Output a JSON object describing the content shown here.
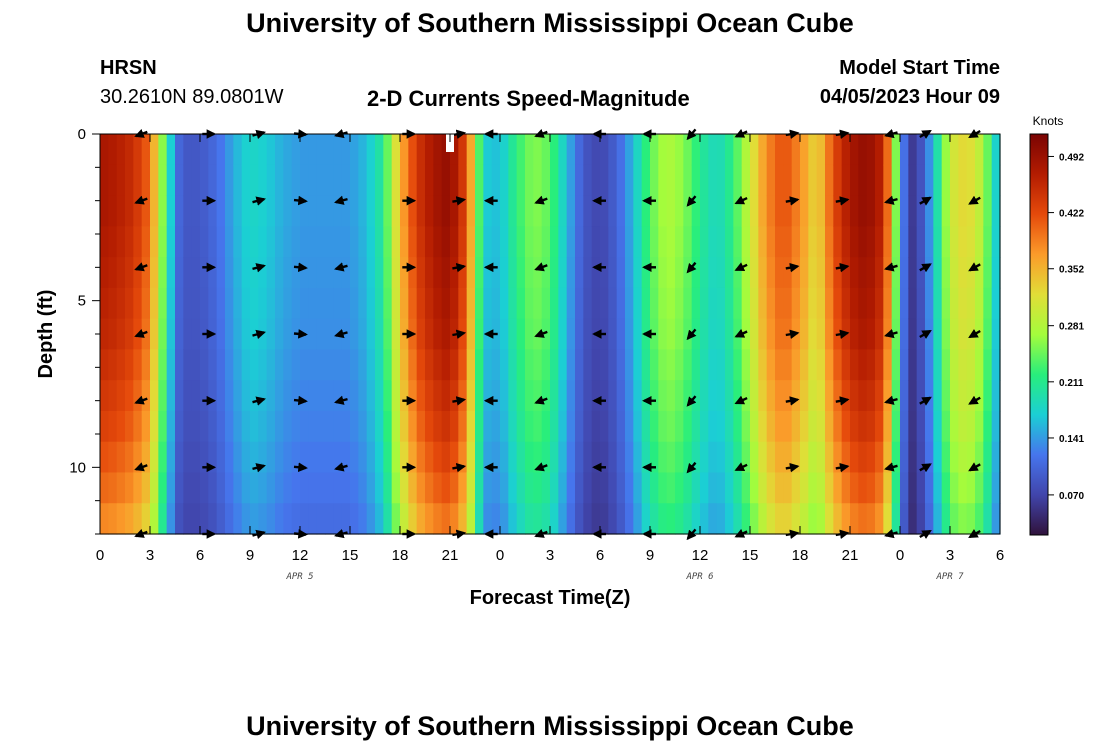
{
  "header": {
    "title_top": "University of Southern Mississippi Ocean Cube",
    "station": "HRSN",
    "coords": "30.2610N  89.0801W",
    "plot_title": "2-D Currents Speed-Magnitude",
    "model_start_label": "Model Start Time",
    "model_start_value": "04/05/2023 Hour 09",
    "title_bottom": "University of Southern Mississippi Ocean Cube"
  },
  "chart_data": {
    "type": "heatmap",
    "title": "2-D Currents Speed-Magnitude",
    "xlabel": "Forecast Time(Z)",
    "ylabel": "Depth (ft)",
    "x_hours": [
      0,
      54
    ],
    "ylim": [
      0,
      12
    ],
    "x_tick_labels": [
      "0",
      "3",
      "6",
      "9",
      "12",
      "15",
      "18",
      "21",
      "0",
      "3",
      "6",
      "9",
      "12",
      "15",
      "18",
      "21",
      "0",
      "3",
      "6"
    ],
    "y_tick_labels": [
      "0",
      "5",
      "10"
    ],
    "y_tick_values": [
      0,
      5,
      10
    ],
    "date_labels": [
      {
        "label": "APR 5",
        "hour": 12
      },
      {
        "label": "APR 6",
        "hour": 36
      },
      {
        "label": "APR 7",
        "hour": 51
      }
    ],
    "colorbar": {
      "title": "Knots",
      "min": 0.02,
      "max": 0.52,
      "ticks": [
        "0.070",
        "0.141",
        "0.211",
        "0.281",
        "0.352",
        "0.422",
        "0.492"
      ],
      "tick_values": [
        0.07,
        0.141,
        0.211,
        0.281,
        0.352,
        0.422,
        0.492
      ]
    },
    "speed_profile": {
      "hours": [
        0,
        1,
        2,
        3,
        3.5,
        4,
        4.5,
        5,
        6,
        7,
        8,
        9,
        10,
        11,
        12,
        13,
        14,
        15,
        16,
        17,
        18,
        19,
        20,
        21,
        22,
        22.5,
        23,
        24,
        25,
        26,
        27,
        28,
        29,
        30,
        31,
        32,
        33,
        34,
        35,
        36,
        37,
        38,
        39,
        40,
        41,
        42,
        43,
        44,
        45,
        46,
        47,
        47.5,
        48,
        48.5,
        49,
        50,
        51,
        52,
        53,
        54
      ],
      "speeds": [
        0.48,
        0.47,
        0.45,
        0.4,
        0.3,
        0.22,
        0.12,
        0.09,
        0.09,
        0.11,
        0.15,
        0.18,
        0.17,
        0.15,
        0.14,
        0.14,
        0.14,
        0.14,
        0.16,
        0.21,
        0.35,
        0.44,
        0.48,
        0.5,
        0.42,
        0.3,
        0.17,
        0.16,
        0.22,
        0.26,
        0.24,
        0.16,
        0.09,
        0.07,
        0.1,
        0.16,
        0.24,
        0.28,
        0.26,
        0.21,
        0.18,
        0.22,
        0.3,
        0.38,
        0.42,
        0.38,
        0.32,
        0.42,
        0.48,
        0.5,
        0.46,
        0.34,
        0.17,
        0.06,
        0.06,
        0.16,
        0.3,
        0.33,
        0.28,
        0.14
      ],
      "depth_factors": [
        1.0,
        1.0,
        1.0,
        0.99,
        0.98,
        0.97,
        0.96,
        0.94,
        0.92,
        0.9,
        0.87,
        0.84,
        0.8
      ]
    },
    "arrows": {
      "hours": [
        2.5,
        6.5,
        9.5,
        12,
        14.5,
        18.5,
        21.5,
        23.5,
        26.5,
        30,
        33,
        35.5,
        38.5,
        41.5,
        44.5,
        47.5,
        49.5,
        52.5
      ],
      "depths": [
        0,
        2,
        4,
        6,
        8,
        10,
        12
      ],
      "directions_deg": [
        200,
        0,
        15,
        -5,
        195,
        0,
        10,
        180,
        200,
        180,
        180,
        230,
        205,
        10,
        10,
        195,
        30,
        210
      ]
    }
  }
}
